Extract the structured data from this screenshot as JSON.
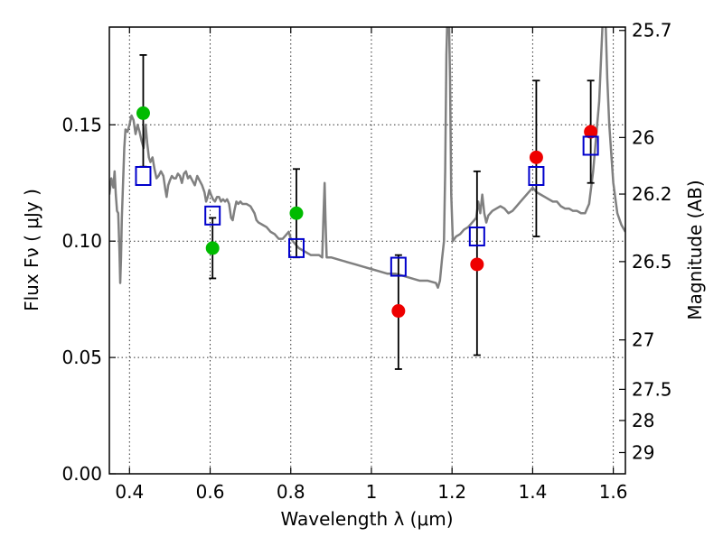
{
  "chart_data": {
    "type": "scatter",
    "xlabel": "Wavelength  λ (μm)",
    "ylabel": "Flux  Fν  ( μJy )",
    "ylabel_right": "Magnitude (AB)",
    "xlim": [
      0.35,
      1.63
    ],
    "ylim": [
      0.0,
      0.192
    ],
    "x_ticks": [
      0.4,
      0.6,
      0.8,
      1.0,
      1.2,
      1.4,
      1.6
    ],
    "x_tick_labels": [
      "0.4",
      "0.6",
      "0.8",
      "1",
      "1.2",
      "1.4",
      "1.6"
    ],
    "y_ticks": [
      0.0,
      0.05,
      0.1,
      0.15
    ],
    "y_tick_labels": [
      "0.00",
      "0.05",
      "0.10",
      "0.15"
    ],
    "right_ticks": [
      {
        "mag": 25.7,
        "label": "25.7"
      },
      {
        "mag": 26,
        "label": "26"
      },
      {
        "mag": 26.2,
        "label": "26.2"
      },
      {
        "mag": 26.5,
        "label": "26.5"
      },
      {
        "mag": 27,
        "label": "27"
      },
      {
        "mag": 27.5,
        "label": "27.5"
      },
      {
        "mag": 28,
        "label": "28"
      },
      {
        "mag": 29,
        "label": "29"
      }
    ],
    "grid": true,
    "colors": {
      "spectrum": "#808080",
      "model_box": "#0000cc",
      "green_point": "#00bb00",
      "red_point": "#ee0000",
      "errorbar": "#000000"
    },
    "spectrum": [
      [
        0.35,
        0.12
      ],
      [
        0.355,
        0.127
      ],
      [
        0.36,
        0.123
      ],
      [
        0.363,
        0.13
      ],
      [
        0.366,
        0.12
      ],
      [
        0.369,
        0.113
      ],
      [
        0.372,
        0.112
      ],
      [
        0.375,
        0.096
      ],
      [
        0.377,
        0.082
      ],
      [
        0.379,
        0.093
      ],
      [
        0.381,
        0.11
      ],
      [
        0.384,
        0.125
      ],
      [
        0.387,
        0.14
      ],
      [
        0.39,
        0.148
      ],
      [
        0.395,
        0.147
      ],
      [
        0.4,
        0.15
      ],
      [
        0.405,
        0.154
      ],
      [
        0.41,
        0.152
      ],
      [
        0.415,
        0.146
      ],
      [
        0.42,
        0.15
      ],
      [
        0.425,
        0.147
      ],
      [
        0.43,
        0.143
      ],
      [
        0.435,
        0.14
      ],
      [
        0.44,
        0.15
      ],
      [
        0.444,
        0.142
      ],
      [
        0.448,
        0.136
      ],
      [
        0.452,
        0.134
      ],
      [
        0.457,
        0.136
      ],
      [
        0.462,
        0.131
      ],
      [
        0.467,
        0.127
      ],
      [
        0.472,
        0.128
      ],
      [
        0.478,
        0.13
      ],
      [
        0.484,
        0.128
      ],
      [
        0.489,
        0.122
      ],
      [
        0.492,
        0.119
      ],
      [
        0.496,
        0.124
      ],
      [
        0.5,
        0.126
      ],
      [
        0.505,
        0.128
      ],
      [
        0.51,
        0.127
      ],
      [
        0.515,
        0.127
      ],
      [
        0.52,
        0.129
      ],
      [
        0.525,
        0.128
      ],
      [
        0.53,
        0.125
      ],
      [
        0.535,
        0.129
      ],
      [
        0.54,
        0.13
      ],
      [
        0.545,
        0.127
      ],
      [
        0.55,
        0.128
      ],
      [
        0.556,
        0.126
      ],
      [
        0.562,
        0.124
      ],
      [
        0.568,
        0.128
      ],
      [
        0.574,
        0.126
      ],
      [
        0.58,
        0.124
      ],
      [
        0.586,
        0.121
      ],
      [
        0.59,
        0.117
      ],
      [
        0.594,
        0.119
      ],
      [
        0.598,
        0.122
      ],
      [
        0.602,
        0.12
      ],
      [
        0.607,
        0.118
      ],
      [
        0.612,
        0.117
      ],
      [
        0.617,
        0.119
      ],
      [
        0.622,
        0.119
      ],
      [
        0.627,
        0.117
      ],
      [
        0.632,
        0.118
      ],
      [
        0.637,
        0.117
      ],
      [
        0.642,
        0.118
      ],
      [
        0.647,
        0.116
      ],
      [
        0.652,
        0.11
      ],
      [
        0.656,
        0.109
      ],
      [
        0.66,
        0.113
      ],
      [
        0.665,
        0.117
      ],
      [
        0.67,
        0.116
      ],
      [
        0.675,
        0.117
      ],
      [
        0.68,
        0.116
      ],
      [
        0.69,
        0.116
      ],
      [
        0.7,
        0.115
      ],
      [
        0.71,
        0.112
      ],
      [
        0.715,
        0.109
      ],
      [
        0.72,
        0.108
      ],
      [
        0.73,
        0.107
      ],
      [
        0.74,
        0.106
      ],
      [
        0.75,
        0.104
      ],
      [
        0.76,
        0.103
      ],
      [
        0.77,
        0.101
      ],
      [
        0.78,
        0.101
      ],
      [
        0.79,
        0.103
      ],
      [
        0.795,
        0.104
      ],
      [
        0.8,
        0.101
      ],
      [
        0.81,
        0.099
      ],
      [
        0.82,
        0.097
      ],
      [
        0.83,
        0.096
      ],
      [
        0.84,
        0.095
      ],
      [
        0.85,
        0.094
      ],
      [
        0.86,
        0.094
      ],
      [
        0.87,
        0.094
      ],
      [
        0.878,
        0.093
      ],
      [
        0.881,
        0.11
      ],
      [
        0.884,
        0.125
      ],
      [
        0.886,
        0.11
      ],
      [
        0.889,
        0.093
      ],
      [
        0.9,
        0.093
      ],
      [
        0.92,
        0.092
      ],
      [
        0.94,
        0.091
      ],
      [
        0.96,
        0.09
      ],
      [
        0.98,
        0.089
      ],
      [
        1.0,
        0.088
      ],
      [
        1.02,
        0.087
      ],
      [
        1.04,
        0.086
      ],
      [
        1.06,
        0.086
      ],
      [
        1.08,
        0.085
      ],
      [
        1.1,
        0.084
      ],
      [
        1.12,
        0.083
      ],
      [
        1.14,
        0.083
      ],
      [
        1.16,
        0.082
      ],
      [
        1.165,
        0.08
      ],
      [
        1.17,
        0.083
      ],
      [
        1.175,
        0.092
      ],
      [
        1.18,
        0.1
      ],
      [
        1.183,
        0.13
      ],
      [
        1.186,
        0.18
      ],
      [
        1.189,
        0.2
      ],
      [
        1.192,
        0.2
      ],
      [
        1.195,
        0.17
      ],
      [
        1.198,
        0.12
      ],
      [
        1.202,
        0.1
      ],
      [
        1.21,
        0.102
      ],
      [
        1.22,
        0.103
      ],
      [
        1.23,
        0.105
      ],
      [
        1.24,
        0.106
      ],
      [
        1.25,
        0.108
      ],
      [
        1.26,
        0.11
      ],
      [
        1.265,
        0.117
      ],
      [
        1.27,
        0.112
      ],
      [
        1.275,
        0.12
      ],
      [
        1.28,
        0.112
      ],
      [
        1.285,
        0.108
      ],
      [
        1.29,
        0.111
      ],
      [
        1.3,
        0.113
      ],
      [
        1.31,
        0.114
      ],
      [
        1.32,
        0.115
      ],
      [
        1.33,
        0.114
      ],
      [
        1.34,
        0.112
      ],
      [
        1.35,
        0.113
      ],
      [
        1.36,
        0.115
      ],
      [
        1.37,
        0.117
      ],
      [
        1.38,
        0.119
      ],
      [
        1.39,
        0.121
      ],
      [
        1.4,
        0.123
      ],
      [
        1.41,
        0.121
      ],
      [
        1.42,
        0.12
      ],
      [
        1.43,
        0.119
      ],
      [
        1.44,
        0.118
      ],
      [
        1.45,
        0.117
      ],
      [
        1.46,
        0.117
      ],
      [
        1.47,
        0.115
      ],
      [
        1.48,
        0.114
      ],
      [
        1.49,
        0.114
      ],
      [
        1.5,
        0.113
      ],
      [
        1.51,
        0.113
      ],
      [
        1.52,
        0.112
      ],
      [
        1.53,
        0.112
      ],
      [
        1.54,
        0.116
      ],
      [
        1.55,
        0.13
      ],
      [
        1.56,
        0.15
      ],
      [
        1.565,
        0.16
      ],
      [
        1.57,
        0.18
      ],
      [
        1.575,
        0.2
      ],
      [
        1.58,
        0.2
      ],
      [
        1.585,
        0.17
      ],
      [
        1.59,
        0.15
      ],
      [
        1.6,
        0.125
      ],
      [
        1.61,
        0.112
      ],
      [
        1.62,
        0.107
      ],
      [
        1.63,
        0.104
      ]
    ],
    "model_boxes": [
      {
        "x": 0.434,
        "y": 0.128
      },
      {
        "x": 0.606,
        "y": 0.111
      },
      {
        "x": 0.814,
        "y": 0.097
      },
      {
        "x": 1.067,
        "y": 0.089
      },
      {
        "x": 1.262,
        "y": 0.102
      },
      {
        "x": 1.409,
        "y": 0.128
      },
      {
        "x": 1.544,
        "y": 0.141
      }
    ],
    "observed_points": [
      {
        "x": 0.434,
        "y": 0.155,
        "yerr_low": 0.132,
        "yerr_high": 0.18,
        "color_key": "green_point"
      },
      {
        "x": 0.606,
        "y": 0.097,
        "yerr_low": 0.084,
        "yerr_high": 0.11,
        "color_key": "green_point"
      },
      {
        "x": 0.814,
        "y": 0.112,
        "yerr_low": 0.093,
        "yerr_high": 0.131,
        "color_key": "green_point"
      },
      {
        "x": 1.067,
        "y": 0.07,
        "yerr_low": 0.045,
        "yerr_high": 0.094,
        "color_key": "red_point"
      },
      {
        "x": 1.262,
        "y": 0.09,
        "yerr_low": 0.051,
        "yerr_high": 0.13,
        "color_key": "red_point"
      },
      {
        "x": 1.409,
        "y": 0.136,
        "yerr_low": 0.102,
        "yerr_high": 0.169,
        "color_key": "red_point"
      },
      {
        "x": 1.544,
        "y": 0.147,
        "yerr_low": 0.125,
        "yerr_high": 0.169,
        "color_key": "red_point"
      }
    ]
  }
}
